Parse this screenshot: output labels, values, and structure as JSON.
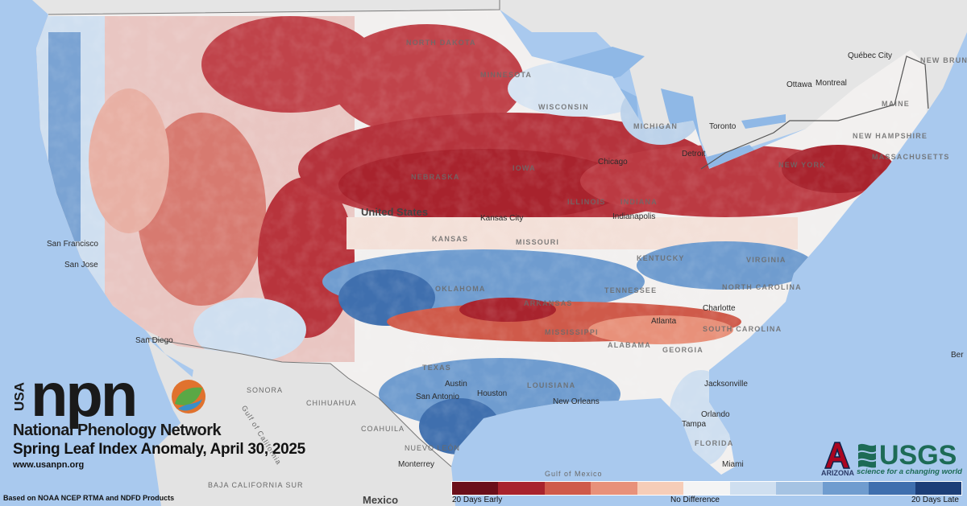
{
  "branding": {
    "usa": "USA",
    "npn": "npn",
    "network_name": "National Phenology Network",
    "map_title": "Spring Leaf Index Anomaly, April 30, 2025",
    "url": "www.usanpn.org",
    "source_note": "Based on NOAA NCEP RTMA and NDFD Products",
    "partner_arizona": "ARIZONA",
    "partner_usgs": "USGS",
    "usgs_tagline": "science for a changing world"
  },
  "legend": {
    "left_label": "20 Days Early",
    "center_label": "No Difference",
    "right_label": "20 Days Late",
    "colors": [
      "#6b0f1a",
      "#a8232d",
      "#cf5a4a",
      "#e8917a",
      "#f6cdb8",
      "#f4f4f4",
      "#cfdff0",
      "#a5c3e3",
      "#6f9ccf",
      "#3f6fae",
      "#1c3e78"
    ]
  },
  "map": {
    "water_color": "#a9c9ee",
    "land_color": "#e6e6e6",
    "country": "United States",
    "country_mexico": "Mexico",
    "states": [
      "NORTH DAKOTA",
      "MINNESOTA",
      "WISCONSIN",
      "MICHIGAN",
      "IOWA",
      "NEBRASKA",
      "ILLINOIS",
      "INDIANA",
      "KANSAS",
      "MISSOURI",
      "KENTUCKY",
      "TENNESSEE",
      "OKLAHOMA",
      "ARKANSAS",
      "MISSISSIPPI",
      "ALABAMA",
      "GEORGIA",
      "SOUTH CAROLINA",
      "NORTH CAROLINA",
      "VIRGINIA",
      "TEXAS",
      "LOUISIANA",
      "FLORIDA",
      "NEW YORK",
      "MAINE",
      "NEW HAMPSHIRE",
      "MASSACHUSETTS"
    ],
    "cities": [
      "Chicago",
      "Indianapolis",
      "Kansas City",
      "Detroit",
      "Toronto",
      "Ottawa",
      "Montreal",
      "Québec City",
      "Charlotte",
      "Atlanta",
      "Jacksonville",
      "Orlando",
      "Tampa",
      "Miami",
      "Houston",
      "Austin",
      "San Antonio",
      "New Orleans",
      "Monterrey",
      "San Francisco",
      "San Jose",
      "San Diego"
    ],
    "canada_labels": [
      "NEW BRUNSWICK"
    ],
    "mexico_regions": [
      "SONORA",
      "CHIHUAHUA",
      "COAHUILA",
      "NUEVO LEÓN",
      "BAJA CALIFORNIA SUR"
    ],
    "gulf_label": "Gulf of Mexico",
    "gulf_california": "Gulf of California",
    "edge_label": "Ber"
  }
}
